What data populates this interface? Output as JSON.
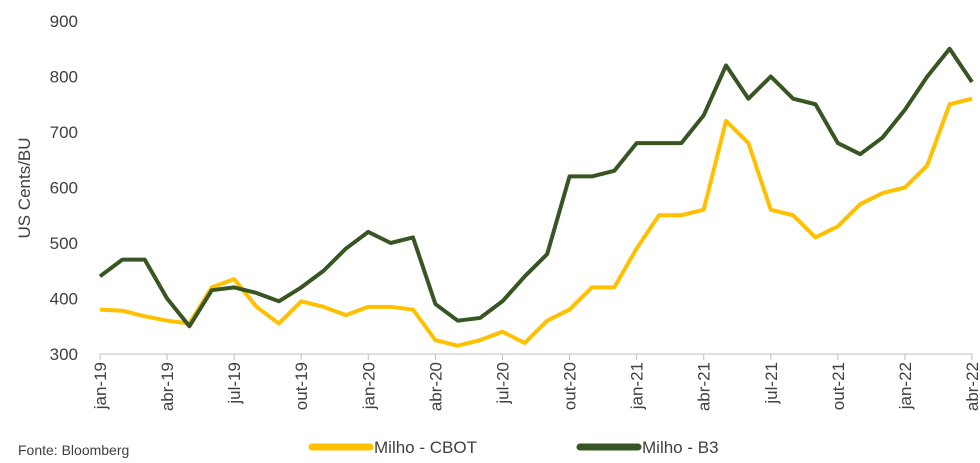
{
  "chart_data": {
    "type": "line",
    "ylabel": "US Cents/BU",
    "source": "Fonte: Bloomberg",
    "categories": [
      "jan-19",
      null,
      null,
      "abr-19",
      null,
      null,
      "jul-19",
      null,
      null,
      "out-19",
      null,
      null,
      "jan-20",
      null,
      null,
      "abr-20",
      null,
      null,
      "jul-20",
      null,
      null,
      "out-20",
      null,
      null,
      "jan-21",
      null,
      null,
      "abr-21",
      null,
      null,
      "jul-21",
      null,
      null,
      "out-21",
      null,
      null,
      "jan-22",
      null,
      null,
      "abr-22"
    ],
    "series": [
      {
        "name": "Milho - CBOT",
        "color": "#ffc000",
        "values": [
          380,
          378,
          368,
          360,
          355,
          420,
          435,
          385,
          355,
          395,
          385,
          370,
          385,
          385,
          380,
          325,
          315,
          325,
          340,
          320,
          360,
          380,
          420,
          420,
          490,
          550,
          550,
          560,
          720,
          680,
          560,
          550,
          510,
          530,
          570,
          590,
          600,
          640,
          750,
          760
        ]
      },
      {
        "name": "Milho - B3",
        "color": "#375623",
        "values": [
          440,
          470,
          470,
          400,
          350,
          415,
          420,
          410,
          395,
          420,
          450,
          490,
          520,
          500,
          510,
          390,
          360,
          365,
          395,
          440,
          480,
          620,
          620,
          630,
          680,
          680,
          680,
          730,
          820,
          760,
          800,
          760,
          750,
          680,
          660,
          690,
          740,
          800,
          850,
          790
        ]
      }
    ],
    "ylim": [
      300,
      900
    ],
    "yticks": [
      300,
      400,
      500,
      600,
      700,
      800,
      900
    ],
    "grid": false,
    "legend": "bottom"
  }
}
